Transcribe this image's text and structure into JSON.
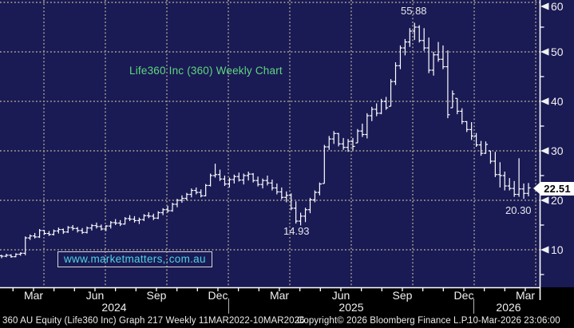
{
  "title": {
    "text": "Life360 Inc (360) Weekly Chart"
  },
  "watermark": {
    "text": "www.marketmatters,.com.au"
  },
  "annotations": {
    "high_label": "55.88",
    "low_label": "14.93",
    "recent_low_label": "20.30"
  },
  "last_price_tag": {
    "value": "22.51"
  },
  "y_axis": {
    "tick_labels": [
      "60",
      "50",
      "40",
      "30",
      "20",
      "10"
    ],
    "tick_values": [
      60,
      50,
      40,
      30,
      20,
      10
    ],
    "minor_tick_values": [
      55,
      45,
      35,
      25,
      15,
      5
    ]
  },
  "x_axis": {
    "quarter_labels": [
      "Mar",
      "Jun",
      "Sep",
      "Dec",
      "Mar",
      "Jun",
      "Sep",
      "Dec",
      "Mar"
    ],
    "year_labels": [
      "2024",
      "2025",
      "2026"
    ]
  },
  "footer": {
    "left": "360 AU Equity (Life360 Inc) Graph 217 Weekly 11MAR2022-10MAR2026",
    "copyright": "Copyright© 2026 Bloomberg Finance L.P.",
    "timestamp": "10-Mar-2026 23:06:00"
  },
  "colors": {
    "background": "#1a1a55",
    "panel": "#000000",
    "bars": "#ffffff",
    "grid": "#a09a8e",
    "title": "#5fd77e",
    "watermark": "#4fd2e6",
    "annotation": "#e6e6ea",
    "axis_text": "#f0f0f0",
    "axis_line": "#ffffff",
    "year_separator": "#b5b5b5",
    "last_price_bg": "#ffffff",
    "last_price_text": "#000000"
  },
  "chart_data": {
    "type": "bar",
    "subtype": "weekly-price-bars-hlc",
    "title": "Life360 Inc (360) Weekly Chart",
    "security": "360 AU Equity (Life360 Inc)",
    "frequency": "Weekly",
    "visible_range": "Feb 2024 - Mar 2026",
    "graph_period": "11MAR2022-10MAR2026",
    "ylabel": "Price",
    "ylim": [
      5,
      62
    ],
    "y_ticks": [
      10,
      20,
      30,
      40,
      50,
      60
    ],
    "grid": true,
    "annotated_points": {
      "high": 55.88,
      "low_2025": 14.93,
      "recent_low": 20.3,
      "last": 22.51
    },
    "bars_hlc": [
      [
        9.0,
        8.3,
        8.7
      ],
      [
        9.2,
        8.5,
        8.9
      ],
      [
        9.1,
        8.4,
        8.6
      ],
      [
        9.3,
        8.5,
        9.1
      ],
      [
        9.5,
        8.8,
        9.3
      ],
      [
        12.7,
        8.9,
        12.4
      ],
      [
        13.1,
        12.0,
        12.8
      ],
      [
        13.4,
        12.3,
        12.6
      ],
      [
        14.2,
        12.4,
        13.9
      ],
      [
        14.0,
        13.0,
        13.3
      ],
      [
        13.8,
        12.8,
        13.1
      ],
      [
        14.1,
        12.9,
        13.8
      ],
      [
        14.5,
        13.3,
        14.1
      ],
      [
        14.3,
        13.2,
        13.6
      ],
      [
        14.8,
        13.4,
        14.5
      ],
      [
        15.0,
        13.9,
        14.3
      ],
      [
        14.6,
        13.5,
        13.9
      ],
      [
        14.4,
        13.2,
        13.5
      ],
      [
        14.7,
        13.3,
        14.4
      ],
      [
        15.2,
        13.9,
        14.9
      ],
      [
        15.5,
        14.3,
        14.7
      ],
      [
        15.1,
        13.9,
        14.2
      ],
      [
        15.0,
        13.8,
        14.8
      ],
      [
        15.8,
        14.3,
        15.5
      ],
      [
        16.2,
        15.0,
        15.4
      ],
      [
        16.0,
        14.8,
        15.2
      ],
      [
        16.6,
        15.1,
        16.3
      ],
      [
        17.0,
        15.8,
        16.2
      ],
      [
        16.8,
        15.5,
        15.9
      ],
      [
        16.5,
        15.2,
        16.1
      ],
      [
        17.2,
        15.8,
        16.9
      ],
      [
        17.6,
        16.4,
        16.8
      ],
      [
        17.3,
        16.0,
        16.4
      ],
      [
        17.8,
        16.2,
        17.5
      ],
      [
        18.4,
        17.0,
        18.1
      ],
      [
        18.9,
        17.5,
        17.9
      ],
      [
        19.5,
        17.7,
        19.2
      ],
      [
        20.3,
        18.6,
        20.0
      ],
      [
        21.0,
        19.5,
        20.4
      ],
      [
        21.5,
        20.0,
        21.2
      ],
      [
        22.4,
        20.6,
        22.0
      ],
      [
        22.6,
        21.2,
        21.6
      ],
      [
        22.2,
        20.6,
        20.9
      ],
      [
        23.3,
        20.8,
        23.0
      ],
      [
        25.4,
        22.8,
        25.0
      ],
      [
        27.4,
        24.6,
        25.2
      ],
      [
        26.2,
        23.9,
        24.3
      ],
      [
        25.0,
        22.9,
        23.3
      ],
      [
        24.6,
        22.6,
        24.2
      ],
      [
        25.2,
        23.4,
        24.8
      ],
      [
        25.6,
        23.8,
        24.1
      ],
      [
        25.4,
        23.2,
        25.0
      ],
      [
        25.8,
        24.0,
        25.3
      ],
      [
        25.5,
        23.6,
        24.0
      ],
      [
        24.8,
        22.8,
        23.2
      ],
      [
        24.4,
        22.4,
        24.0
      ],
      [
        25.0,
        23.0,
        23.5
      ],
      [
        24.2,
        22.0,
        22.5
      ],
      [
        23.4,
        21.2,
        21.7
      ],
      [
        22.6,
        20.2,
        20.6
      ],
      [
        21.8,
        19.6,
        21.0
      ],
      [
        21.4,
        18.0,
        18.4
      ],
      [
        19.8,
        15.3,
        15.8
      ],
      [
        17.5,
        14.93,
        16.8
      ],
      [
        18.5,
        15.6,
        18.1
      ],
      [
        20.5,
        17.4,
        20.1
      ],
      [
        22.0,
        19.6,
        21.6
      ],
      [
        23.6,
        21.0,
        23.3
      ],
      [
        31.2,
        23.4,
        30.8
      ],
      [
        33.0,
        30.2,
        32.4
      ],
      [
        34.0,
        31.4,
        33.5
      ],
      [
        33.6,
        30.9,
        31.4
      ],
      [
        32.6,
        30.2,
        30.7
      ],
      [
        32.4,
        29.8,
        31.9
      ],
      [
        32.6,
        30.1,
        30.9
      ],
      [
        34.4,
        31.6,
        34.0
      ],
      [
        35.5,
        32.8,
        33.3
      ],
      [
        37.6,
        32.5,
        37.1
      ],
      [
        38.9,
        36.0,
        38.4
      ],
      [
        39.6,
        37.0,
        37.6
      ],
      [
        40.5,
        37.4,
        40.0
      ],
      [
        40.9,
        38.3,
        38.7
      ],
      [
        44.5,
        39.0,
        44.0
      ],
      [
        47.9,
        43.3,
        47.2
      ],
      [
        51.3,
        46.5,
        50.8
      ],
      [
        52.6,
        49.3,
        52.0
      ],
      [
        54.8,
        51.0,
        54.2
      ],
      [
        55.88,
        52.4,
        55.0
      ],
      [
        55.4,
        51.9,
        52.3
      ],
      [
        54.8,
        50.2,
        50.8
      ],
      [
        52.9,
        45.7,
        46.3
      ],
      [
        50.0,
        45.2,
        49.4
      ],
      [
        52.0,
        48.0,
        48.5
      ],
      [
        51.3,
        46.5,
        47.0
      ],
      [
        50.3,
        36.6,
        37.3
      ],
      [
        42.2,
        38.7,
        41.5
      ],
      [
        40.6,
        37.4,
        38.0
      ],
      [
        38.6,
        35.4,
        35.9
      ],
      [
        36.0,
        33.8,
        34.3
      ],
      [
        35.8,
        32.2,
        33.0
      ],
      [
        33.6,
        30.8,
        31.2
      ],
      [
        32.0,
        29.0,
        29.5
      ],
      [
        31.9,
        29.4,
        31.3
      ],
      [
        30.0,
        27.4,
        27.9
      ],
      [
        29.8,
        24.7,
        25.2
      ],
      [
        27.7,
        22.6,
        25.0
      ],
      [
        25.8,
        22.0,
        22.9
      ],
      [
        24.5,
        22.0,
        22.4
      ],
      [
        23.9,
        20.7,
        21.2
      ],
      [
        28.5,
        20.7,
        22.3
      ],
      [
        23.4,
        20.3,
        21.4
      ],
      [
        23.5,
        20.8,
        22.51
      ]
    ]
  }
}
